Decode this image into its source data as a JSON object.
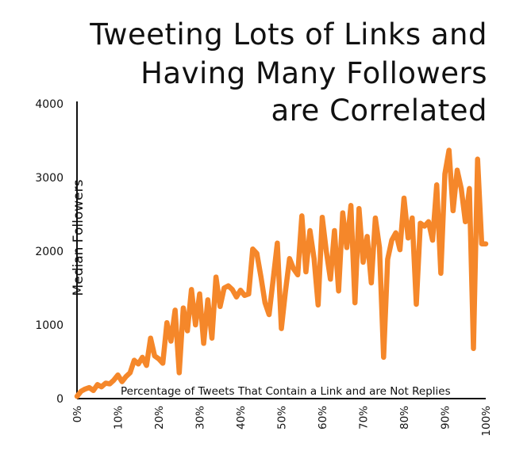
{
  "chart_data": {
    "type": "line",
    "title_lines": [
      "Tweeting Lots of Links and",
      "Having Many Followers",
      "are Correlated"
    ],
    "xlabel": "Percentage of Tweets That Contain a Link and are Not Replies",
    "ylabel": "Median Followers",
    "xlim": [
      0,
      100
    ],
    "ylim": [
      0,
      4000
    ],
    "x_ticks": [
      "0%",
      "10%",
      "20%",
      "30%",
      "40%",
      "50%",
      "60%",
      "70%",
      "80%",
      "90%",
      "100%"
    ],
    "y_ticks": [
      "0",
      "1000",
      "2000",
      "3000",
      "4000"
    ],
    "grid": false,
    "legend": "none",
    "color": "#f5872a",
    "series": [
      {
        "x": [
          0,
          1,
          2,
          3,
          4,
          5,
          6,
          7,
          8,
          9,
          10,
          11,
          12,
          13,
          14,
          15,
          16,
          17,
          18,
          19,
          20,
          21,
          22,
          23,
          24,
          25,
          26,
          27,
          28,
          29,
          30,
          31,
          32,
          33,
          34,
          35,
          36,
          37,
          38,
          39,
          40,
          41,
          42,
          43,
          44,
          45,
          46,
          47,
          48,
          49,
          50,
          51,
          52,
          53,
          54,
          55,
          56,
          57,
          58,
          59,
          60,
          61,
          62,
          63,
          64,
          65,
          66,
          67,
          68,
          69,
          70,
          71,
          72,
          73,
          74,
          75,
          76,
          77,
          78,
          79,
          80,
          81,
          82,
          83,
          84,
          85,
          86,
          87,
          88,
          89,
          90,
          91,
          92,
          93,
          94,
          95,
          96,
          97,
          98,
          99,
          100
        ],
        "y": [
          30,
          100,
          130,
          150,
          110,
          190,
          160,
          210,
          200,
          250,
          320,
          230,
          300,
          350,
          520,
          470,
          560,
          450,
          820,
          580,
          540,
          480,
          1030,
          780,
          1200,
          350,
          1230,
          920,
          1480,
          1000,
          1420,
          750,
          1340,
          820,
          1650,
          1250,
          1500,
          1530,
          1480,
          1380,
          1470,
          1400,
          1420,
          2030,
          1970,
          1650,
          1300,
          1140,
          1620,
          2110,
          950,
          1450,
          1900,
          1760,
          1680,
          2480,
          1720,
          2280,
          1900,
          1270,
          2460,
          2000,
          1620,
          2280,
          1460,
          2520,
          2050,
          2620,
          1300,
          2580,
          1850,
          2200,
          1570,
          2450,
          2050,
          560,
          1890,
          2150,
          2250,
          2020,
          2720,
          2180,
          2450,
          1280,
          2380,
          2340,
          2400,
          2150,
          2900,
          1700,
          3050,
          3370,
          2550,
          3100,
          2850,
          2400,
          2850,
          680,
          3250,
          2100,
          2100
        ]
      }
    ]
  }
}
